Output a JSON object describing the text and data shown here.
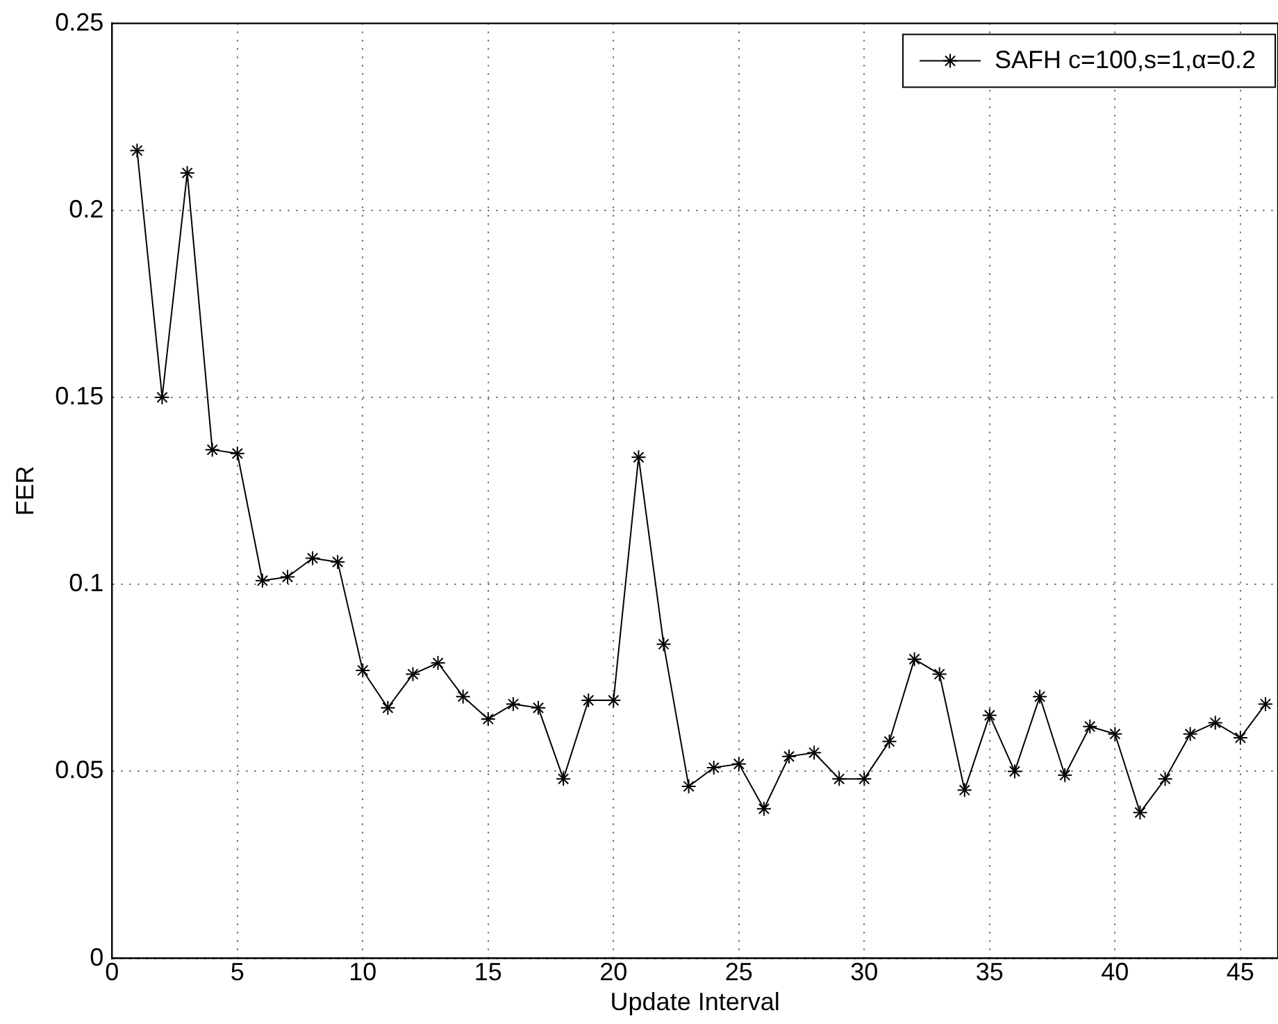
{
  "chart_data": {
    "type": "line",
    "xlabel": "Update Interval",
    "ylabel": "FER",
    "x": [
      1,
      2,
      3,
      4,
      5,
      6,
      7,
      8,
      9,
      10,
      11,
      12,
      13,
      14,
      15,
      16,
      17,
      18,
      19,
      20,
      21,
      22,
      23,
      24,
      25,
      26,
      27,
      28,
      29,
      30,
      31,
      32,
      33,
      34,
      35,
      36,
      37,
      38,
      39,
      40,
      41,
      42,
      43,
      44,
      45,
      46
    ],
    "series": [
      {
        "name": "SAFH c=100,s=1,α=0.2",
        "color": "#000000",
        "values": [
          0.216,
          0.15,
          0.21,
          0.136,
          0.135,
          0.101,
          0.102,
          0.107,
          0.106,
          0.077,
          0.067,
          0.076,
          0.079,
          0.07,
          0.064,
          0.068,
          0.067,
          0.048,
          0.069,
          0.069,
          0.134,
          0.084,
          0.046,
          0.051,
          0.052,
          0.04,
          0.054,
          0.055,
          0.048,
          0.048,
          0.058,
          0.08,
          0.076,
          0.045,
          0.065,
          0.05,
          0.07,
          0.049,
          0.062,
          0.06,
          0.039,
          0.048,
          0.06,
          0.063,
          0.059,
          0.068
        ]
      }
    ],
    "xlim": [
      0,
      46.5
    ],
    "xticks": [
      0,
      5,
      10,
      15,
      20,
      25,
      30,
      35,
      40,
      45
    ],
    "ylim": [
      0,
      0.25
    ],
    "yticks": [
      0,
      0.05,
      0.1,
      0.15,
      0.2,
      0.25
    ],
    "grid": true,
    "legend": "top right",
    "marker": "cross",
    "line_style": "solid"
  }
}
